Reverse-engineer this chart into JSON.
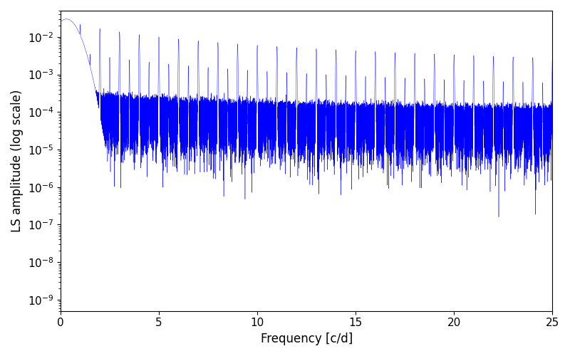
{
  "title": "",
  "xlabel": "Frequency [c/d]",
  "ylabel": "LS amplitude (log scale)",
  "xlim": [
    0,
    25
  ],
  "ylim": [
    5e-10,
    0.05
  ],
  "color": "#0000ff",
  "background_color": "#ffffff",
  "figsize": [
    8.0,
    5.0
  ],
  "dpi": 100,
  "freq_max": 25.0,
  "n_points": 100000,
  "seed": 12345
}
